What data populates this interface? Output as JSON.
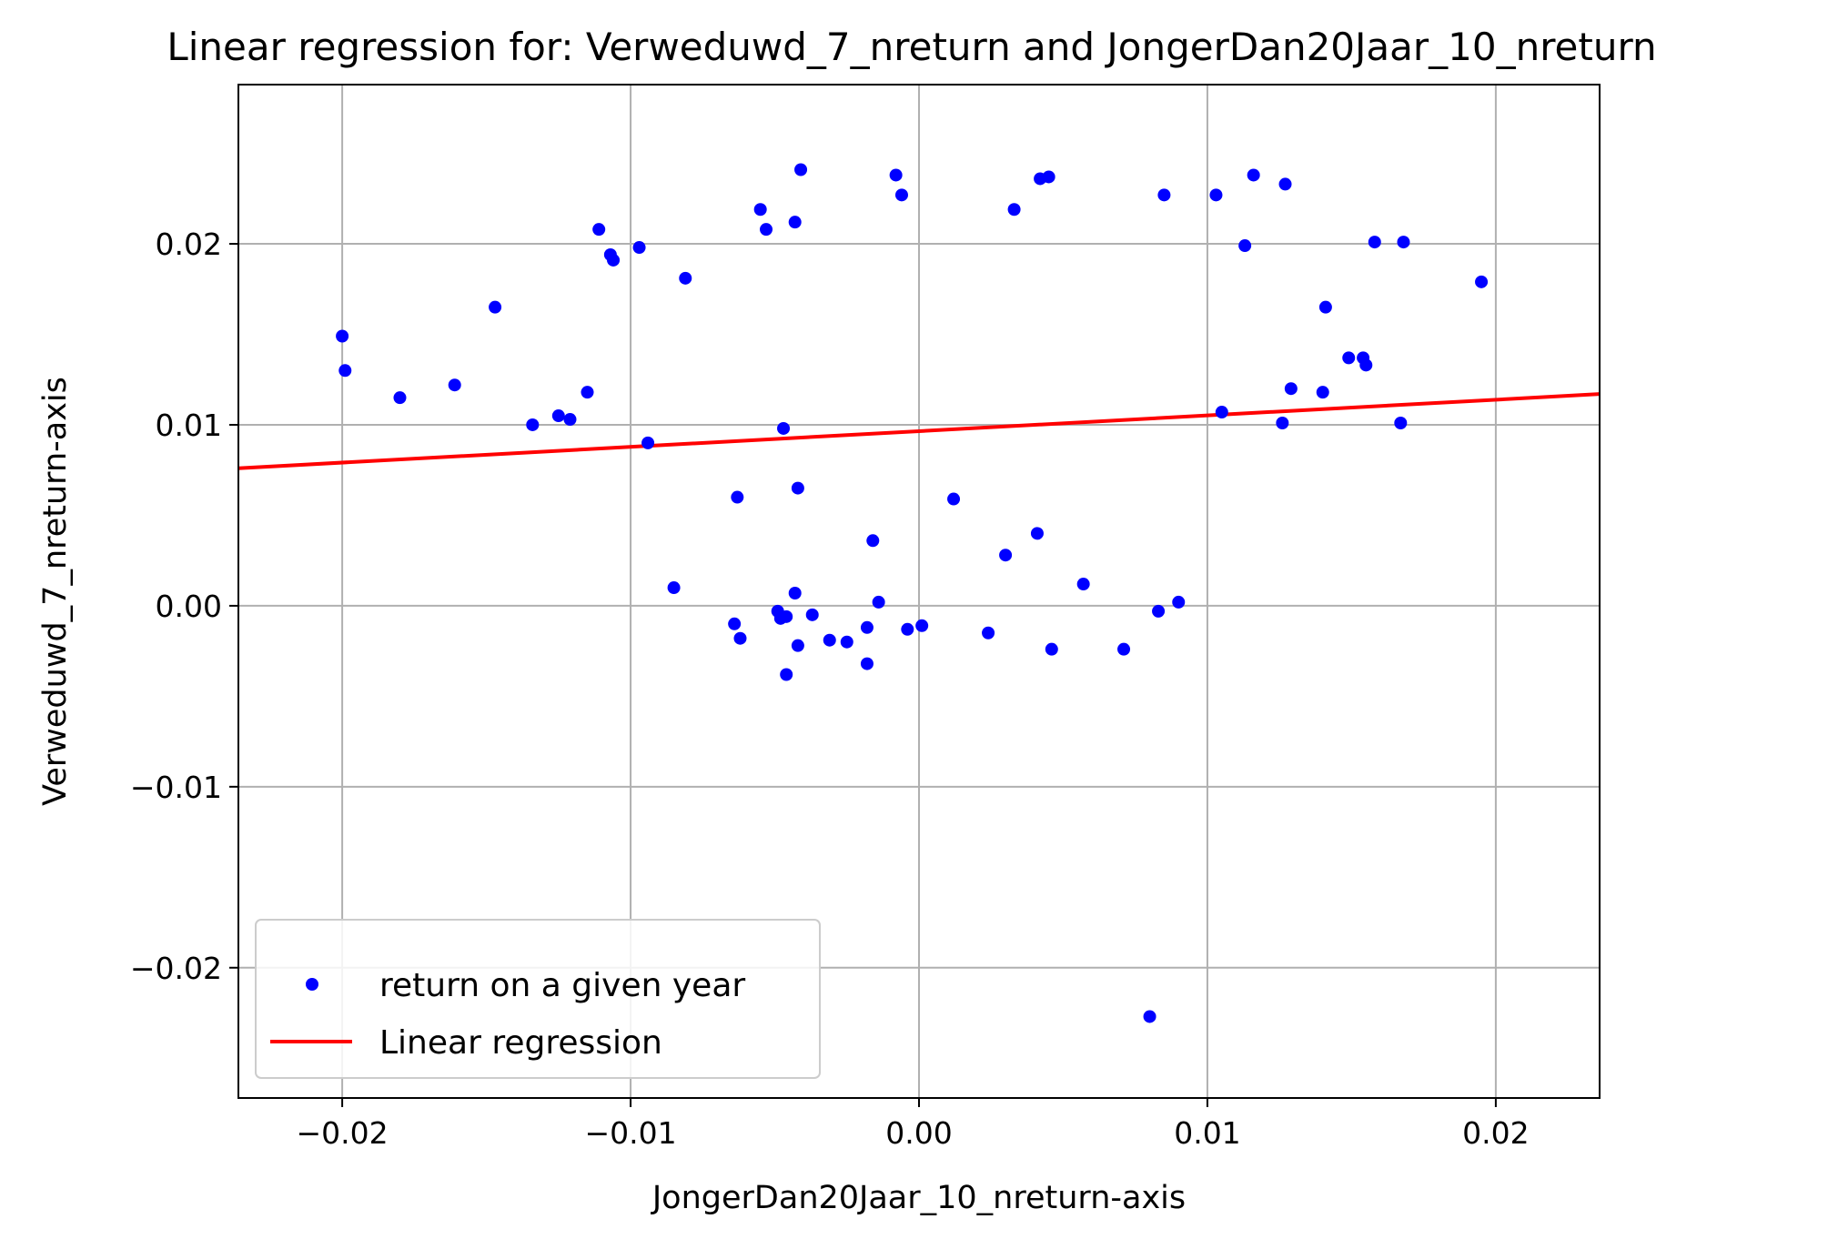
{
  "chart_data": {
    "type": "scatter",
    "title": "Linear regression for: Verweduwd_7_nreturn and JongerDan20Jaar_10_nreturn",
    "xlabel": "JongerDan20Jaar_10_nreturn-axis",
    "ylabel": "Verweduwd_7_nreturn-axis",
    "xlim": [
      -0.0236,
      0.0236
    ],
    "ylim": [
      -0.0272,
      0.0288
    ],
    "xticks": [
      -0.02,
      -0.01,
      0.0,
      0.01,
      0.02
    ],
    "xtick_labels": [
      "−0.02",
      "−0.01",
      "0.00",
      "0.01",
      "0.02"
    ],
    "yticks": [
      -0.02,
      -0.01,
      0.0,
      0.01,
      0.02
    ],
    "ytick_labels": [
      "−0.02",
      "−0.01",
      "0.00",
      "0.01",
      "0.02"
    ],
    "grid": true,
    "legend_position": "lower-left",
    "series": [
      {
        "name": "return on a given year",
        "kind": "scatter",
        "color": "#0000ff",
        "points": [
          [
            -0.02,
            0.0149
          ],
          [
            -0.0199,
            0.013
          ],
          [
            -0.018,
            0.0115
          ],
          [
            -0.0161,
            0.0122
          ],
          [
            -0.0147,
            0.0165
          ],
          [
            -0.0134,
            0.01
          ],
          [
            -0.0125,
            0.0105
          ],
          [
            -0.0121,
            0.0103
          ],
          [
            -0.0115,
            0.0118
          ],
          [
            -0.0111,
            0.0208
          ],
          [
            -0.0107,
            0.0194
          ],
          [
            -0.0106,
            0.0191
          ],
          [
            -0.0097,
            0.0198
          ],
          [
            -0.0094,
            0.009
          ],
          [
            -0.0085,
            0.001
          ],
          [
            -0.0081,
            0.0181
          ],
          [
            -0.0064,
            -0.001
          ],
          [
            -0.0063,
            0.006
          ],
          [
            -0.0062,
            -0.0018
          ],
          [
            -0.0055,
            0.0219
          ],
          [
            -0.0053,
            0.0208
          ],
          [
            -0.0049,
            -0.0003
          ],
          [
            -0.0048,
            -0.0007
          ],
          [
            -0.0047,
            0.0098
          ],
          [
            -0.0046,
            -0.0038
          ],
          [
            -0.0046,
            -0.0006
          ],
          [
            -0.0043,
            0.0007
          ],
          [
            -0.0043,
            0.0212
          ],
          [
            -0.0042,
            -0.0022
          ],
          [
            -0.0042,
            0.0065
          ],
          [
            -0.0041,
            0.0241
          ],
          [
            -0.0037,
            -0.0005
          ],
          [
            -0.0031,
            -0.0019
          ],
          [
            -0.0025,
            -0.002
          ],
          [
            -0.0018,
            -0.0032
          ],
          [
            -0.0018,
            -0.0012
          ],
          [
            -0.0016,
            0.0036
          ],
          [
            -0.0014,
            0.0002
          ],
          [
            -0.0008,
            0.0238
          ],
          [
            -0.0006,
            0.0227
          ],
          [
            -0.0004,
            -0.0013
          ],
          [
            0.0001,
            -0.0011
          ],
          [
            0.0012,
            0.0059
          ],
          [
            0.0024,
            -0.0015
          ],
          [
            0.003,
            0.0028
          ],
          [
            0.0033,
            0.0219
          ],
          [
            0.0041,
            0.004
          ],
          [
            0.0042,
            0.0236
          ],
          [
            0.0045,
            0.0237
          ],
          [
            0.0046,
            -0.0024
          ],
          [
            0.0057,
            0.0012
          ],
          [
            0.0071,
            -0.0024
          ],
          [
            0.008,
            -0.0227
          ],
          [
            0.0083,
            -0.0003
          ],
          [
            0.0085,
            0.0227
          ],
          [
            0.009,
            0.0002
          ],
          [
            0.0103,
            0.0227
          ],
          [
            0.0105,
            0.0107
          ],
          [
            0.0113,
            0.0199
          ],
          [
            0.0116,
            0.0238
          ],
          [
            0.0126,
            0.0101
          ],
          [
            0.0127,
            0.0233
          ],
          [
            0.0129,
            0.012
          ],
          [
            0.014,
            0.0118
          ],
          [
            0.0141,
            0.0165
          ],
          [
            0.0149,
            0.0137
          ],
          [
            0.0154,
            0.0137
          ],
          [
            0.0155,
            0.0133
          ],
          [
            0.0158,
            0.0201
          ],
          [
            0.0167,
            0.0101
          ],
          [
            0.0168,
            0.0201
          ],
          [
            0.0195,
            0.0179
          ]
        ]
      },
      {
        "name": "Linear regression",
        "kind": "line",
        "color": "#ff0000",
        "points": [
          [
            -0.0236,
            0.0076
          ],
          [
            0.0236,
            0.0117
          ]
        ]
      }
    ]
  }
}
